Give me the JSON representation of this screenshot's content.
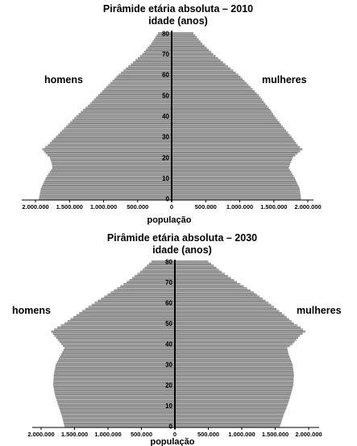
{
  "chart_data": [
    {
      "type": "bar",
      "orientation": "horizontal-pyramid",
      "title": "Pirâmide etária absoluta – 2010",
      "ylabel": "idade (anos)",
      "xlabel": "população",
      "left_series_label": "homens",
      "right_series_label": "mulheres",
      "y_ticks": [
        0,
        10,
        20,
        30,
        40,
        50,
        60,
        70,
        80
      ],
      "x_tick_labels": [
        "2.000.000",
        "1.500.000",
        "1.000.000",
        "500.000",
        "0",
        "500.000",
        "1.000.000",
        "1.500.000",
        "2.000.000"
      ],
      "x_range": [
        -2000000,
        2000000
      ],
      "y_range": [
        0,
        80
      ],
      "age_knots": [
        0,
        5,
        10,
        15,
        17,
        20,
        22,
        24,
        26,
        30,
        35,
        40,
        43,
        45,
        50,
        55,
        60,
        65,
        70,
        75,
        80
      ],
      "men_knots": [
        1950000,
        1920000,
        1850000,
        1750000,
        1760000,
        1790000,
        1850000,
        1900000,
        1820000,
        1700000,
        1550000,
        1400000,
        1300000,
        1230000,
        1080000,
        930000,
        780000,
        600000,
        430000,
        300000,
        200000
      ],
      "women_knots": [
        1900000,
        1880000,
        1810000,
        1720000,
        1740000,
        1780000,
        1850000,
        1920000,
        1850000,
        1760000,
        1630000,
        1510000,
        1450000,
        1400000,
        1280000,
        1130000,
        980000,
        790000,
        610000,
        450000,
        320000
      ],
      "bar_color": "#808080",
      "line_color": "#c8c8c8"
    },
    {
      "type": "bar",
      "orientation": "horizontal-pyramid",
      "title": "Pirâmide etária absoluta – 2030",
      "ylabel": "idade (anos)",
      "xlabel": "população",
      "left_series_label": "homens",
      "right_series_label": "mulheres",
      "y_ticks": [
        0,
        10,
        20,
        30,
        40,
        50,
        60,
        70,
        80
      ],
      "x_tick_labels": [
        "2.000.000",
        "1.500.000",
        "1.000.000",
        "500.000",
        "0",
        "500.000",
        "1.000.000",
        "1.500.000",
        "2.000.000"
      ],
      "x_range": [
        -2000000,
        2000000
      ],
      "y_range": [
        0,
        80
      ],
      "age_knots": [
        0,
        5,
        10,
        15,
        20,
        25,
        30,
        35,
        38,
        40,
        44,
        46,
        48,
        50,
        55,
        60,
        65,
        70,
        75,
        80
      ],
      "men_knots": [
        1650000,
        1690000,
        1740000,
        1790000,
        1820000,
        1810000,
        1780000,
        1700000,
        1650000,
        1700000,
        1800000,
        1850000,
        1760000,
        1650000,
        1430000,
        1200000,
        960000,
        720000,
        520000,
        350000
      ],
      "women_knots": [
        1570000,
        1620000,
        1680000,
        1730000,
        1770000,
        1780000,
        1760000,
        1700000,
        1680000,
        1760000,
        1870000,
        1950000,
        1880000,
        1780000,
        1600000,
        1400000,
        1180000,
        930000,
        700000,
        500000
      ],
      "bar_color": "#808080",
      "line_color": "#c8c8c8"
    }
  ]
}
